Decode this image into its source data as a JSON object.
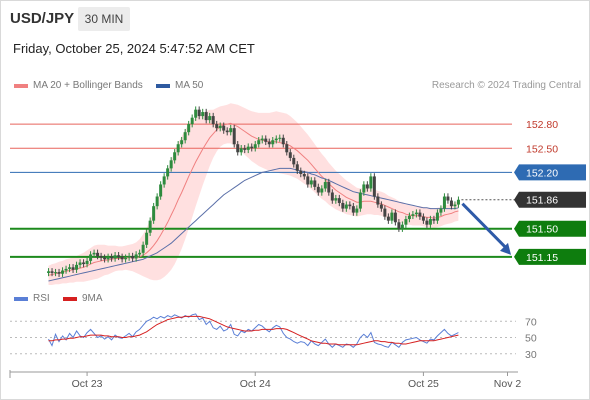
{
  "header": {
    "symbol": "USD/JPY",
    "interval": "30 MIN",
    "timestamp": "Friday, October 25, 2024 5:47:52 AM CET",
    "credit": "Research © 2024 Trading Central"
  },
  "colors": {
    "bollinger_band": "#ffd6d6",
    "ma20": "#f08080",
    "ma50": "#5a6fa8",
    "resistance_line": "#e8645c",
    "pivot_line": "#2e6bb3",
    "support_line": "#1c8a1c",
    "support_label_bg": "#0e7d0e",
    "pivot_label_bg": "#2e6bb3",
    "current_label_bg": "#333333",
    "candle_up": "#2e8b3e",
    "candle_down": "#444444",
    "rsi": "#5a7fd6",
    "rsi_ma": "#d62020",
    "forecast_arrow": "#2e5aa8"
  },
  "chart_data": [
    {
      "type": "candlestick",
      "title": "USD/JPY",
      "legend": [
        {
          "name": "MA 20 + Bollinger Bands",
          "color": "#f08080"
        },
        {
          "name": "MA 50",
          "color": "#2e5aa0"
        }
      ],
      "x_ticks": [
        "Oct 23",
        "Oct 24",
        "Oct 25",
        "Nov 2"
      ],
      "x_tick_pos": [
        12,
        60,
        108,
        132
      ],
      "x_range": [
        -10,
        135
      ],
      "y_range": [
        150.8,
        153.1
      ],
      "current_price": 151.86,
      "key_levels": [
        {
          "value": 152.8,
          "label": "152.80",
          "kind": "resistance"
        },
        {
          "value": 152.5,
          "label": "152.50",
          "kind": "resistance"
        },
        {
          "value": 152.2,
          "label": "152.20",
          "kind": "pivot"
        },
        {
          "value": 151.5,
          "label": "151.50",
          "kind": "support"
        },
        {
          "value": 151.15,
          "label": "151.15",
          "kind": "support"
        }
      ],
      "ma_close": [
        150.97,
        150.95,
        150.96,
        150.94,
        150.98,
        151.0,
        151.02,
        150.99,
        151.05,
        151.08,
        151.06,
        151.1,
        151.18,
        151.2,
        151.16,
        151.14,
        151.12,
        151.15,
        151.13,
        151.17,
        151.15,
        151.12,
        151.14,
        151.16,
        151.13,
        151.18,
        151.2,
        151.3,
        151.45,
        151.6,
        151.78,
        151.9,
        152.05,
        152.15,
        152.25,
        152.35,
        152.45,
        152.55,
        152.6,
        152.7,
        152.8,
        152.88,
        152.98,
        152.9,
        152.95,
        152.85,
        152.9,
        152.8,
        152.75,
        152.78,
        152.72,
        152.7,
        152.75,
        152.55,
        152.45,
        152.5,
        152.48,
        152.52,
        152.5,
        152.55,
        152.6,
        152.62,
        152.58,
        152.55,
        152.6,
        152.62,
        152.63,
        152.55,
        152.45,
        152.38,
        152.3,
        152.22,
        152.18,
        152.15,
        152.05,
        152.1,
        152.02,
        151.95,
        152.0,
        152.08,
        151.95,
        151.85,
        151.88,
        151.82,
        151.75,
        151.8,
        151.78,
        151.7,
        151.75,
        151.95,
        152.05,
        152.0,
        152.15,
        151.9,
        151.8,
        151.75,
        151.65,
        151.6,
        151.7,
        151.58,
        151.5,
        151.55,
        151.62,
        151.66,
        151.68,
        151.7,
        151.65,
        151.6,
        151.55,
        151.62,
        151.6,
        151.7,
        151.75,
        151.9,
        151.85,
        151.78,
        151.8,
        151.86
      ],
      "ma20": [
        150.92,
        150.93,
        150.94,
        150.95,
        150.96,
        150.97,
        150.98,
        150.99,
        151.0,
        151.01,
        151.02,
        151.04,
        151.06,
        151.08,
        151.09,
        151.1,
        151.11,
        151.11,
        151.12,
        151.13,
        151.13,
        151.13,
        151.14,
        151.14,
        151.14,
        151.14,
        151.15,
        151.17,
        151.2,
        151.24,
        151.29,
        151.35,
        151.42,
        151.5,
        151.58,
        151.67,
        151.76,
        151.86,
        151.95,
        152.05,
        152.15,
        152.24,
        152.33,
        152.41,
        152.49,
        152.56,
        152.63,
        152.68,
        152.73,
        152.77,
        152.79,
        152.8,
        152.81,
        152.79,
        152.77,
        152.74,
        152.71,
        152.68,
        152.65,
        152.63,
        152.61,
        152.6,
        152.59,
        152.58,
        152.58,
        152.58,
        152.57,
        152.56,
        152.55,
        152.53,
        152.5,
        152.47,
        152.43,
        152.39,
        152.35,
        152.3,
        152.25,
        152.2,
        152.15,
        152.11,
        152.06,
        152.02,
        151.98,
        151.95,
        151.92,
        151.89,
        151.87,
        151.85,
        151.83,
        151.83,
        151.84,
        151.84,
        151.84,
        151.83,
        151.82,
        151.81,
        151.79,
        151.77,
        151.75,
        151.73,
        151.71,
        151.7,
        151.68,
        151.67,
        151.66,
        151.66,
        151.66,
        151.65,
        151.64,
        151.64,
        151.63,
        151.64,
        151.65,
        151.67,
        151.68,
        151.69,
        151.71,
        151.72
      ],
      "ma50": [
        150.85,
        150.86,
        150.87,
        150.88,
        150.89,
        150.9,
        150.91,
        150.92,
        150.93,
        150.94,
        150.95,
        150.96,
        150.97,
        150.98,
        150.99,
        151.0,
        151.01,
        151.02,
        151.03,
        151.04,
        151.05,
        151.06,
        151.07,
        151.08,
        151.09,
        151.1,
        151.11,
        151.12,
        151.14,
        151.16,
        151.18,
        151.2,
        151.23,
        151.26,
        151.29,
        151.32,
        151.36,
        151.4,
        151.44,
        151.48,
        151.52,
        151.56,
        151.6,
        151.64,
        151.68,
        151.72,
        151.76,
        151.8,
        151.84,
        151.88,
        151.92,
        151.95,
        151.98,
        152.01,
        152.04,
        152.07,
        152.1,
        152.12,
        152.14,
        152.16,
        152.18,
        152.2,
        152.21,
        152.22,
        152.23,
        152.24,
        152.25,
        152.25,
        152.25,
        152.25,
        152.24,
        152.23,
        152.22,
        152.21,
        152.2,
        152.18,
        152.17,
        152.15,
        152.13,
        152.12,
        152.1,
        152.08,
        152.06,
        152.04,
        152.02,
        152.0,
        151.98,
        151.96,
        151.95,
        151.94,
        151.93,
        151.92,
        151.91,
        151.9,
        151.89,
        151.88,
        151.87,
        151.86,
        151.85,
        151.84,
        151.83,
        151.82,
        151.81,
        151.8,
        151.79,
        151.78,
        151.77,
        151.76,
        151.76,
        151.75,
        151.75,
        151.75,
        151.75,
        151.75,
        151.75,
        151.75,
        151.75,
        151.76
      ],
      "band_halfwidth": [
        0.12,
        0.13,
        0.13,
        0.14,
        0.14,
        0.15,
        0.15,
        0.16,
        0.16,
        0.17,
        0.18,
        0.19,
        0.2,
        0.21,
        0.21,
        0.2,
        0.19,
        0.18,
        0.17,
        0.16,
        0.15,
        0.15,
        0.15,
        0.16,
        0.17,
        0.19,
        0.22,
        0.26,
        0.31,
        0.37,
        0.43,
        0.49,
        0.55,
        0.6,
        0.64,
        0.68,
        0.7,
        0.71,
        0.7,
        0.68,
        0.65,
        0.6,
        0.55,
        0.5,
        0.45,
        0.4,
        0.35,
        0.3,
        0.27,
        0.25,
        0.24,
        0.24,
        0.25,
        0.26,
        0.27,
        0.28,
        0.29,
        0.3,
        0.31,
        0.32,
        0.33,
        0.34,
        0.35,
        0.36,
        0.37,
        0.38,
        0.38,
        0.38,
        0.38,
        0.37,
        0.36,
        0.35,
        0.34,
        0.33,
        0.32,
        0.31,
        0.3,
        0.29,
        0.28,
        0.27,
        0.26,
        0.25,
        0.24,
        0.23,
        0.22,
        0.21,
        0.2,
        0.19,
        0.18,
        0.17,
        0.17,
        0.16,
        0.16,
        0.16,
        0.15,
        0.15,
        0.15,
        0.14,
        0.14,
        0.14,
        0.13,
        0.13,
        0.13,
        0.12,
        0.12,
        0.12,
        0.12,
        0.12,
        0.12,
        0.12,
        0.12,
        0.12,
        0.12,
        0.12,
        0.12,
        0.12,
        0.12,
        0.12
      ],
      "forecast": {
        "from": 151.86,
        "to": 151.15
      }
    },
    {
      "type": "line",
      "title": "RSI",
      "series": [
        {
          "name": "RSI",
          "color": "#5a7fd6"
        },
        {
          "name": "9MA",
          "color": "#d62020"
        }
      ],
      "y_ticks": [
        70,
        50,
        30
      ],
      "y_range": [
        10,
        90
      ],
      "rsi": [
        48,
        40,
        54,
        45,
        52,
        47,
        55,
        50,
        58,
        52,
        50,
        56,
        60,
        55,
        50,
        52,
        48,
        51,
        47,
        53,
        50,
        49,
        52,
        55,
        51,
        57,
        60,
        65,
        70,
        72,
        75,
        73,
        76,
        74,
        77,
        75,
        78,
        76,
        74,
        77,
        75,
        78,
        79,
        72,
        74,
        66,
        70,
        62,
        60,
        64,
        58,
        60,
        66,
        54,
        52,
        58,
        56,
        60,
        58,
        62,
        66,
        64,
        60,
        57,
        62,
        65,
        63,
        55,
        50,
        48,
        45,
        43,
        45,
        44,
        40,
        46,
        42,
        40,
        44,
        48,
        42,
        38,
        42,
        40,
        38,
        42,
        41,
        38,
        42,
        50,
        54,
        50,
        56,
        44,
        42,
        41,
        39,
        38,
        44,
        41,
        38,
        44,
        47,
        48,
        49,
        50,
        47,
        45,
        43,
        48,
        47,
        52,
        56,
        60,
        55,
        52,
        54,
        56
      ],
      "rsi_ma": [
        46,
        46,
        47,
        47,
        48,
        48,
        49,
        49,
        50,
        51,
        51,
        52,
        53,
        53,
        53,
        53,
        52,
        52,
        51,
        51,
        51,
        50,
        50,
        51,
        51,
        52,
        53,
        55,
        57,
        60,
        63,
        66,
        68,
        70,
        72,
        73,
        74,
        75,
        75,
        76,
        76,
        76,
        76,
        76,
        75,
        74,
        73,
        71,
        69,
        67,
        65,
        63,
        62,
        61,
        60,
        59,
        58,
        58,
        58,
        59,
        59,
        60,
        60,
        60,
        60,
        61,
        61,
        61,
        60,
        58,
        56,
        54,
        52,
        50,
        48,
        46,
        45,
        44,
        43,
        43,
        42,
        42,
        42,
        41,
        41,
        41,
        41,
        41,
        41,
        42,
        43,
        44,
        45,
        46,
        46,
        45,
        45,
        44,
        44,
        43,
        43,
        42,
        42,
        43,
        44,
        45,
        46,
        46,
        46,
        46,
        46,
        47,
        48,
        49,
        50,
        51,
        52,
        53
      ]
    }
  ]
}
